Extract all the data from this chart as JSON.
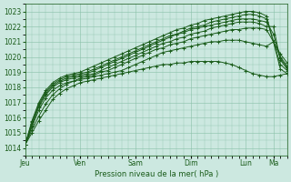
{
  "xlabel": "Pression niveau de la mer( hPa )",
  "background_color": "#cce8e0",
  "grid_color": "#88c0a8",
  "line_color": "#1a5c1a",
  "ylim": [
    1013.5,
    1023.5
  ],
  "yticks": [
    1014,
    1015,
    1016,
    1017,
    1018,
    1019,
    1020,
    1021,
    1022,
    1023
  ],
  "day_labels": [
    "Jeu",
    "Ven",
    "Sam",
    "Dim",
    "Lun",
    "Ma"
  ],
  "day_positions": [
    0,
    48,
    96,
    144,
    192,
    216
  ],
  "xlim": [
    0,
    228
  ],
  "series": [
    {
      "x": [
        0,
        6,
        12,
        18,
        24,
        30,
        36,
        42,
        48,
        54,
        60,
        66,
        72,
        78,
        84,
        90,
        96,
        102,
        108,
        114,
        120,
        126,
        132,
        138,
        144,
        150,
        156,
        162,
        168,
        174,
        180,
        186,
        192,
        198,
        204,
        210,
        216,
        222,
        228
      ],
      "y": [
        1014.2,
        1015.0,
        1015.8,
        1016.5,
        1017.2,
        1017.6,
        1017.9,
        1018.1,
        1018.3,
        1018.4,
        1018.5,
        1018.6,
        1018.7,
        1018.8,
        1018.9,
        1019.0,
        1019.1,
        1019.2,
        1019.3,
        1019.4,
        1019.5,
        1019.5,
        1019.6,
        1019.6,
        1019.7,
        1019.7,
        1019.7,
        1019.7,
        1019.7,
        1019.6,
        1019.5,
        1019.3,
        1019.1,
        1018.9,
        1018.8,
        1018.7,
        1018.7,
        1018.8,
        1018.9
      ]
    },
    {
      "x": [
        0,
        6,
        12,
        18,
        24,
        30,
        36,
        42,
        48,
        54,
        60,
        66,
        72,
        78,
        84,
        90,
        96,
        102,
        108,
        114,
        120,
        126,
        132,
        138,
        144,
        150,
        156,
        162,
        168,
        174,
        180,
        186,
        192,
        198,
        204,
        210,
        216,
        222,
        228
      ],
      "y": [
        1014.2,
        1015.2,
        1016.1,
        1016.9,
        1017.5,
        1017.9,
        1018.2,
        1018.4,
        1018.5,
        1018.6,
        1018.7,
        1018.8,
        1018.9,
        1019.0,
        1019.1,
        1019.3,
        1019.5,
        1019.7,
        1019.9,
        1020.1,
        1020.3,
        1020.4,
        1020.5,
        1020.6,
        1020.7,
        1020.8,
        1020.9,
        1021.0,
        1021.0,
        1021.1,
        1021.1,
        1021.1,
        1021.0,
        1020.9,
        1020.8,
        1020.7,
        1021.0,
        1019.2,
        1018.9
      ]
    },
    {
      "x": [
        0,
        6,
        12,
        18,
        24,
        30,
        36,
        42,
        48,
        54,
        60,
        66,
        72,
        78,
        84,
        90,
        96,
        102,
        108,
        114,
        120,
        126,
        132,
        138,
        144,
        150,
        156,
        162,
        168,
        174,
        180,
        186,
        192,
        198,
        204,
        210,
        216,
        222,
        228
      ],
      "y": [
        1014.2,
        1015.4,
        1016.5,
        1017.3,
        1017.8,
        1018.1,
        1018.3,
        1018.4,
        1018.6,
        1018.7,
        1018.8,
        1019.0,
        1019.1,
        1019.3,
        1019.5,
        1019.7,
        1019.9,
        1020.1,
        1020.3,
        1020.5,
        1020.6,
        1020.8,
        1020.9,
        1021.0,
        1021.2,
        1021.3,
        1021.4,
        1021.5,
        1021.6,
        1021.7,
        1021.8,
        1021.8,
        1021.9,
        1021.9,
        1021.9,
        1021.8,
        1021.0,
        1019.5,
        1019.1
      ]
    },
    {
      "x": [
        0,
        6,
        12,
        18,
        24,
        30,
        36,
        42,
        48,
        54,
        60,
        66,
        72,
        78,
        84,
        90,
        96,
        102,
        108,
        114,
        120,
        126,
        132,
        138,
        144,
        150,
        156,
        162,
        168,
        174,
        180,
        186,
        192,
        198,
        204,
        210,
        216,
        222,
        228
      ],
      "y": [
        1014.2,
        1015.5,
        1016.7,
        1017.5,
        1018.0,
        1018.3,
        1018.5,
        1018.6,
        1018.7,
        1018.8,
        1018.9,
        1019.1,
        1019.3,
        1019.5,
        1019.7,
        1019.9,
        1020.1,
        1020.3,
        1020.5,
        1020.7,
        1020.9,
        1021.0,
        1021.2,
        1021.3,
        1021.5,
        1021.6,
        1021.7,
        1021.9,
        1022.0,
        1022.1,
        1022.2,
        1022.3,
        1022.3,
        1022.3,
        1022.2,
        1022.0,
        1022.0,
        1019.8,
        1019.2
      ]
    },
    {
      "x": [
        0,
        6,
        12,
        18,
        24,
        30,
        36,
        42,
        48,
        54,
        60,
        66,
        72,
        78,
        84,
        90,
        96,
        102,
        108,
        114,
        120,
        126,
        132,
        138,
        144,
        150,
        156,
        162,
        168,
        174,
        180,
        186,
        192,
        198,
        204,
        210,
        216,
        222,
        228
      ],
      "y": [
        1014.2,
        1015.6,
        1016.8,
        1017.6,
        1018.1,
        1018.4,
        1018.6,
        1018.7,
        1018.8,
        1018.9,
        1019.1,
        1019.3,
        1019.5,
        1019.7,
        1019.9,
        1020.1,
        1020.3,
        1020.5,
        1020.7,
        1020.9,
        1021.1,
        1021.3,
        1021.5,
        1021.6,
        1021.8,
        1021.9,
        1022.0,
        1022.1,
        1022.2,
        1022.3,
        1022.4,
        1022.5,
        1022.5,
        1022.5,
        1022.4,
        1022.3,
        1021.5,
        1019.9,
        1019.3
      ]
    },
    {
      "x": [
        0,
        6,
        12,
        18,
        24,
        30,
        36,
        42,
        48,
        54,
        60,
        66,
        72,
        78,
        84,
        90,
        96,
        102,
        108,
        114,
        120,
        126,
        132,
        138,
        144,
        150,
        156,
        162,
        168,
        174,
        180,
        186,
        192,
        198,
        204,
        210,
        216,
        222,
        228
      ],
      "y": [
        1014.2,
        1015.7,
        1016.9,
        1017.7,
        1018.2,
        1018.5,
        1018.7,
        1018.8,
        1018.9,
        1019.0,
        1019.2,
        1019.4,
        1019.6,
        1019.8,
        1020.0,
        1020.2,
        1020.4,
        1020.6,
        1020.8,
        1021.0,
        1021.2,
        1021.4,
        1021.5,
        1021.7,
        1021.9,
        1022.0,
        1022.1,
        1022.3,
        1022.4,
        1022.5,
        1022.6,
        1022.7,
        1022.8,
        1022.8,
        1022.7,
        1022.5,
        1021.0,
        1020.0,
        1019.4
      ]
    },
    {
      "x": [
        0,
        6,
        12,
        18,
        24,
        30,
        36,
        42,
        48,
        54,
        60,
        66,
        72,
        78,
        84,
        90,
        96,
        102,
        108,
        114,
        120,
        126,
        132,
        138,
        144,
        150,
        156,
        162,
        168,
        174,
        180,
        186,
        192,
        198,
        204,
        210,
        216,
        222,
        228
      ],
      "y": [
        1014.2,
        1015.8,
        1017.0,
        1017.8,
        1018.3,
        1018.6,
        1018.8,
        1018.9,
        1019.0,
        1019.2,
        1019.4,
        1019.6,
        1019.8,
        1020.0,
        1020.2,
        1020.4,
        1020.6,
        1020.8,
        1021.0,
        1021.2,
        1021.4,
        1021.6,
        1021.8,
        1021.9,
        1022.1,
        1022.2,
        1022.4,
        1022.5,
        1022.6,
        1022.7,
        1022.8,
        1022.9,
        1023.0,
        1023.0,
        1022.9,
        1022.7,
        1021.0,
        1020.2,
        1019.6
      ]
    }
  ]
}
